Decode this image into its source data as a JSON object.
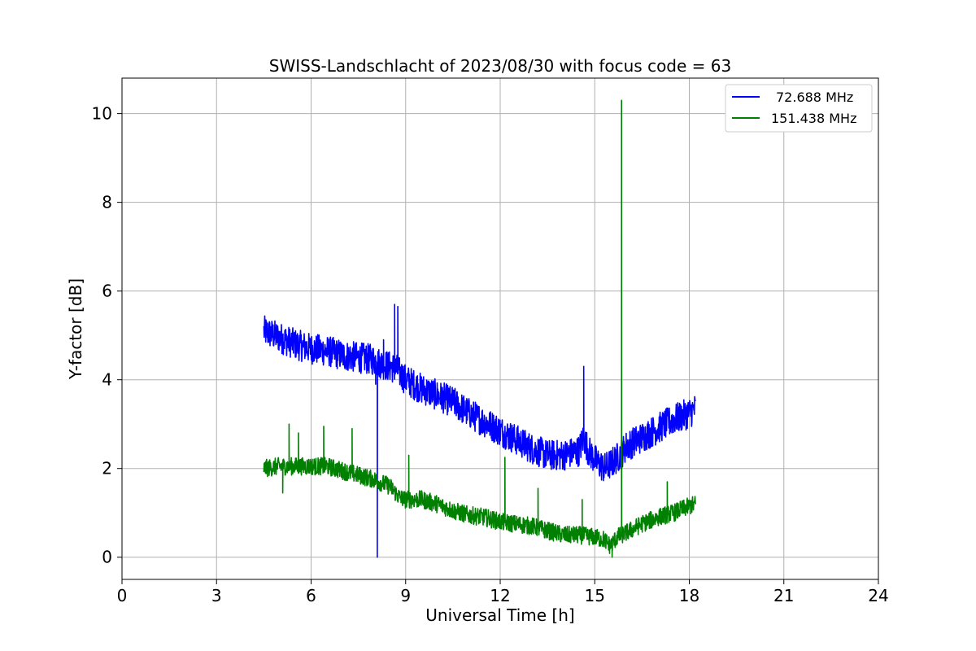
{
  "chart_data": {
    "type": "line",
    "title": "SWISS-Landschlacht of 2023/08/30 with focus code = 63",
    "xlabel": "Universal Time [h]",
    "ylabel": "Y-factor [dB]",
    "xlim": [
      0,
      24
    ],
    "ylim": [
      -0.5,
      10.8
    ],
    "xticks": [
      0,
      3,
      6,
      9,
      12,
      15,
      18,
      21,
      24
    ],
    "yticks": [
      0,
      2,
      4,
      6,
      8,
      10
    ],
    "xtick_labels": [
      "0",
      "3",
      "6",
      "9",
      "12",
      "15",
      "18",
      "21",
      "24"
    ],
    "ytick_labels": [
      "0",
      "2",
      "4",
      "6",
      "8",
      "10"
    ],
    "grid": true,
    "legend_position": "top-right",
    "series": [
      {
        "name": "72.688 MHz",
        "color": "#0000ff",
        "x": [
          4.5,
          5.0,
          5.5,
          6.0,
          6.5,
          7.0,
          7.5,
          8.0,
          8.1,
          8.5,
          8.7,
          9.0,
          9.5,
          10.0,
          10.5,
          11.0,
          11.5,
          12.0,
          12.5,
          13.0,
          13.5,
          14.0,
          14.5,
          14.65,
          14.8,
          15.0,
          15.3,
          15.5,
          15.8,
          16.0,
          16.5,
          17.0,
          17.5,
          18.0,
          18.2
        ],
        "y": [
          5.1,
          4.95,
          4.8,
          4.7,
          4.65,
          4.55,
          4.5,
          4.45,
          4.4,
          4.3,
          4.25,
          4.0,
          3.8,
          3.65,
          3.5,
          3.25,
          3.05,
          2.85,
          2.65,
          2.45,
          2.3,
          2.3,
          2.4,
          2.7,
          2.4,
          2.2,
          2.0,
          2.1,
          2.3,
          2.5,
          2.7,
          2.9,
          3.1,
          3.25,
          3.35
        ],
        "noise": 0.35,
        "spikes": [
          {
            "x": 8.1,
            "y": 0.0
          },
          {
            "x": 8.05,
            "y": 3.9
          },
          {
            "x": 8.3,
            "y": 4.9
          },
          {
            "x": 8.65,
            "y": 5.7
          },
          {
            "x": 8.75,
            "y": 5.65
          },
          {
            "x": 14.65,
            "y": 4.3
          }
        ]
      },
      {
        "name": "151.438 MHz",
        "color": "#008000",
        "x": [
          4.5,
          5.0,
          5.5,
          6.0,
          6.5,
          7.0,
          7.5,
          8.0,
          8.5,
          8.8,
          9.0,
          9.5,
          10.0,
          10.5,
          11.0,
          11.5,
          12.0,
          12.5,
          13.0,
          13.5,
          14.0,
          14.5,
          15.0,
          15.3,
          15.5,
          15.7,
          16.0,
          16.5,
          17.0,
          17.5,
          18.0,
          18.2
        ],
        "y": [
          2.0,
          2.05,
          2.05,
          2.05,
          2.05,
          1.95,
          1.85,
          1.75,
          1.6,
          1.35,
          1.3,
          1.3,
          1.2,
          1.05,
          0.95,
          0.9,
          0.8,
          0.75,
          0.7,
          0.6,
          0.5,
          0.5,
          0.45,
          0.4,
          0.25,
          0.45,
          0.55,
          0.75,
          0.9,
          1.0,
          1.15,
          1.2
        ],
        "noise": 0.2,
        "spikes": [
          {
            "x": 5.3,
            "y": 3.0
          },
          {
            "x": 5.6,
            "y": 2.8
          },
          {
            "x": 6.4,
            "y": 2.95
          },
          {
            "x": 7.3,
            "y": 2.9
          },
          {
            "x": 9.1,
            "y": 2.3
          },
          {
            "x": 12.15,
            "y": 2.25
          },
          {
            "x": 13.2,
            "y": 1.55
          },
          {
            "x": 14.6,
            "y": 1.3
          },
          {
            "x": 15.85,
            "y": 10.3
          },
          {
            "x": 17.3,
            "y": 1.7
          },
          {
            "x": 5.1,
            "y": 1.45
          },
          {
            "x": 15.55,
            "y": 0.0
          }
        ]
      }
    ]
  }
}
